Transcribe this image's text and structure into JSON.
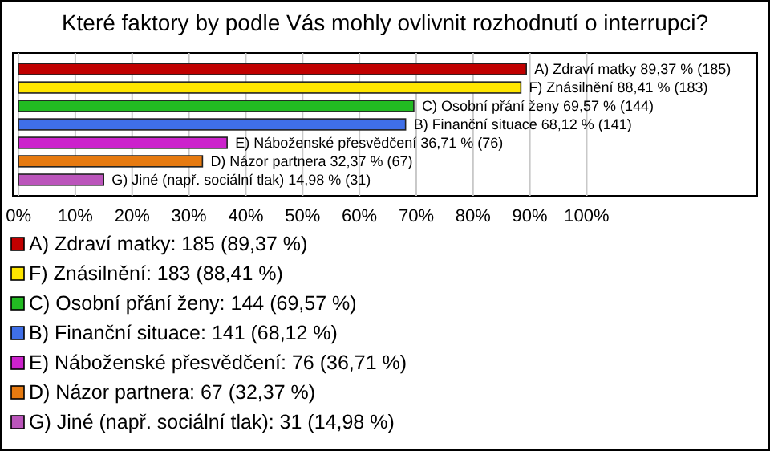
{
  "chart_data": {
    "type": "bar",
    "orientation": "horizontal",
    "title": "Které faktory by podle Vás mohly ovlivnit rozhodnutí o interrupci?",
    "categories": [
      null
    ],
    "series": [
      {
        "name": "A) Zdraví matky: 185 (89,37 %)",
        "color": "#c00000",
        "values": [
          89.37
        ],
        "value_labels": [
          "A) Zdraví matky 89,37 % (185)"
        ]
      },
      {
        "name": "F) Znásilnění: 183 (88,41 %)",
        "color": "#ffe600",
        "values": [
          88.41
        ],
        "value_labels": [
          "F) Znásilnění 88,41 % (183)"
        ]
      },
      {
        "name": "C) Osobní přání ženy: 144 (69,57 %)",
        "color": "#22bb22",
        "values": [
          69.57
        ],
        "value_labels": [
          "C) Osobní přání ženy 69,57 % (144)"
        ]
      },
      {
        "name": "B) Finanční situace: 141 (68,12 %)",
        "color": "#3f6fe8",
        "values": [
          68.12
        ],
        "value_labels": [
          "B) Finanční situace 68,12 % (141)"
        ]
      },
      {
        "name": "E) Náboženské přesvědčení: 76 (36,71 %)",
        "color": "#cc22cc",
        "values": [
          36.71
        ],
        "value_labels": [
          "E) Náboženské přesvědčení 36,71 % (76)"
        ]
      },
      {
        "name": "D) Názor partnera: 67 (32,37 %)",
        "color": "#e67a10",
        "values": [
          32.37
        ],
        "value_labels": [
          "D) Názor partnera 32,37 % (67)"
        ]
      },
      {
        "name": "G) Jiné (např. sociální tlak): 31 (14,98 %)",
        "color": "#bb55bb",
        "values": [
          14.98
        ],
        "value_labels": [
          "G) Jiné (např. sociální tlak) 14,98 % (31)"
        ]
      }
    ],
    "xlim": [
      -1,
      130
    ],
    "xticks": [
      {
        "value": 0,
        "label": "0%"
      },
      {
        "value": 10,
        "label": "10%"
      },
      {
        "value": 20,
        "label": "20%"
      },
      {
        "value": 30,
        "label": "30%"
      },
      {
        "value": 40,
        "label": "40%"
      },
      {
        "value": 50,
        "label": "50%"
      },
      {
        "value": 60,
        "label": "60%"
      },
      {
        "value": 70,
        "label": "70%"
      },
      {
        "value": 80,
        "label": "80%"
      },
      {
        "value": 90,
        "label": "90%"
      },
      {
        "value": 100,
        "label": "100%"
      }
    ],
    "grid": "x",
    "legend": "bottom"
  }
}
